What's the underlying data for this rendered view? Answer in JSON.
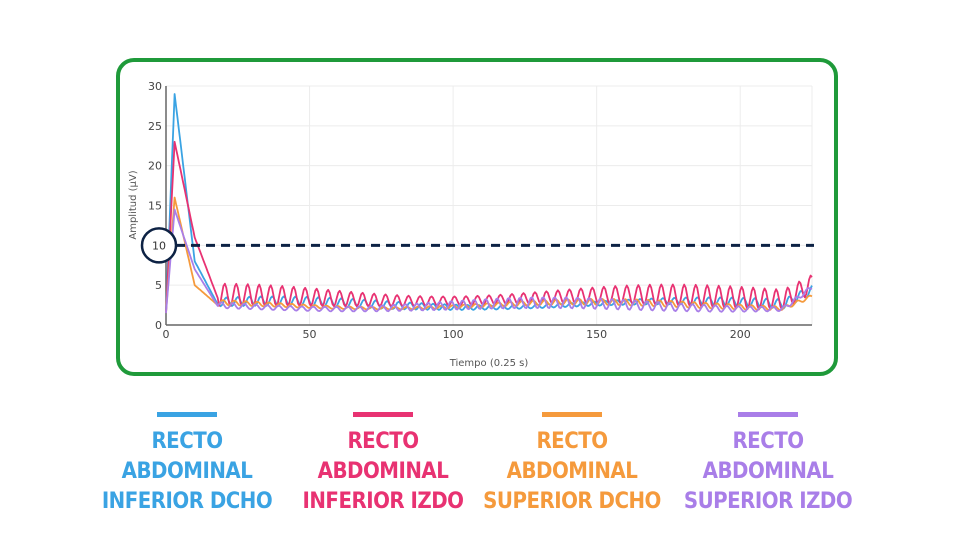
{
  "chart_data": {
    "type": "line",
    "xlabel": "Tiempo (0.25 s)",
    "ylabel": "Amplitud (µV)",
    "xlim": [
      0,
      225
    ],
    "ylim": [
      0,
      30
    ],
    "xticks": [
      0,
      50,
      100,
      150,
      200
    ],
    "yticks": [
      0,
      5,
      10,
      15,
      20,
      25,
      30
    ],
    "grid": true,
    "threshold": {
      "y": 10,
      "style": "dashed",
      "color": "#0d2244",
      "label": "10"
    },
    "series": [
      {
        "name": "RECTO ABDOMINAL INFERIOR DCHO",
        "color": "#3aa3e3",
        "peak": 29,
        "tail": 8,
        "base": 2.6,
        "osc": 0.6,
        "end": 4.5
      },
      {
        "name": "RECTO ABDOMINAL INFERIOR IZDO",
        "color": "#e83272",
        "peak": 23,
        "tail": 11,
        "base": 3.4,
        "osc": 1.4,
        "end": 5.5
      },
      {
        "name": "RECTO ABDOMINAL SUPERIOR DCHO",
        "color": "#f59a3c",
        "peak": 16,
        "tail": 5,
        "base": 2.5,
        "osc": 0.4,
        "end": 4.0
      },
      {
        "name": "RECTO ABDOMINAL SUPERIOR IZDO",
        "color": "#a97ee8",
        "peak": 14.5,
        "tail": 7,
        "base": 2.4,
        "osc": 0.7,
        "end": 5.0
      }
    ]
  },
  "legend": [
    {
      "line1": "RECTO ABDOMINAL",
      "line2": "INFERIOR DCHO",
      "color": "#3aa3e3"
    },
    {
      "line1": "RECTO ABDOMINAL",
      "line2": "INFERIOR IZDO",
      "color": "#e83272"
    },
    {
      "line1": "RECTO ABDOMINAL",
      "line2": "SUPERIOR DCHO",
      "color": "#f59a3c"
    },
    {
      "line1": "RECTO ABDOMINAL",
      "line2": "SUPERIOR IZDO",
      "color": "#a97ee8"
    }
  ]
}
